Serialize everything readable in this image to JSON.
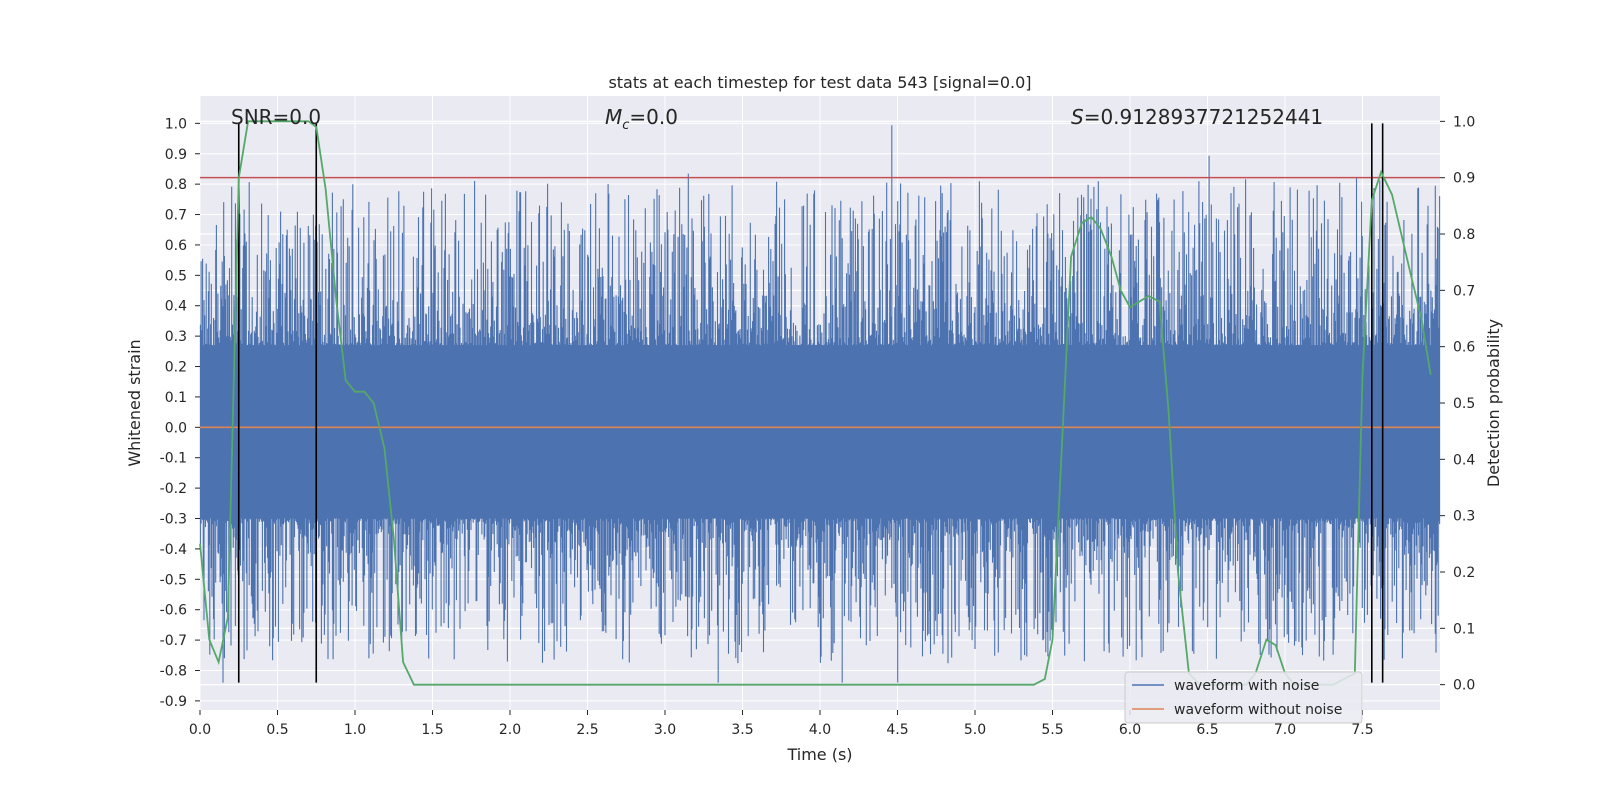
{
  "chart_data": {
    "type": "line",
    "title": "stats at each timestep for test data 543 [signal=0.0]",
    "xlabel": "Time (s)",
    "ylabel": "Whitened strain",
    "ylabel_right": "Detection probability",
    "xlim": [
      0.0,
      8.0
    ],
    "ylim": [
      -0.93,
      1.09
    ],
    "ylim_right": [
      -0.045,
      1.045
    ],
    "xticks": [
      "0.0",
      "0.5",
      "1.0",
      "1.5",
      "2.0",
      "2.5",
      "3.0",
      "3.5",
      "4.0",
      "4.5",
      "5.0",
      "5.5",
      "6.0",
      "6.5",
      "7.0",
      "7.5"
    ],
    "yticks": [
      "1.0",
      "0.9",
      "0.8",
      "0.7",
      "0.6",
      "0.5",
      "0.4",
      "0.3",
      "0.2",
      "0.1",
      "0.0",
      "-0.1",
      "-0.2",
      "-0.3",
      "-0.4",
      "-0.5",
      "-0.6",
      "-0.7",
      "-0.8",
      "-0.9"
    ],
    "yticks_right": [
      "1.0",
      "0.9",
      "0.8",
      "0.7",
      "0.6",
      "0.5",
      "0.4",
      "0.3",
      "0.2",
      "0.1",
      "0.0"
    ],
    "annotations": {
      "snr": "SNR=0.0",
      "mc_symbol": "M",
      "mc_sub": "c",
      "mc_value": "=0.0",
      "s_symbol": "S",
      "s_value": "=0.9128937721252441"
    },
    "threshold_right": 0.9,
    "vlines_x": [
      0.25,
      0.75,
      7.56,
      7.63
    ],
    "vlines_ymin": -0.84,
    "vlines_ymax": 1.0,
    "noise": {
      "seed": 543,
      "count": 1700,
      "baseline_max": 0.27,
      "baseline_min": -0.3,
      "spike_up_max": 1.0,
      "spike_down_min": -0.84
    },
    "series": [
      {
        "name": "waveform with noise",
        "color": "#4c72b0"
      },
      {
        "name": "waveform without noise",
        "color": "#dd8452",
        "x": [
          0.0,
          8.0
        ],
        "y": [
          0.0,
          0.0
        ]
      },
      {
        "name": "detection probability",
        "color": "#55a868",
        "x": [
          0.0,
          0.06,
          0.12,
          0.18,
          0.25,
          0.31,
          0.38,
          0.45,
          0.5,
          0.56,
          0.62,
          0.7,
          0.75,
          0.81,
          0.88,
          0.94,
          1.0,
          1.06,
          1.12,
          1.19,
          1.25,
          1.31,
          1.38,
          1.45,
          1.5,
          2.0,
          3.0,
          4.0,
          5.0,
          5.38,
          5.45,
          5.5,
          5.56,
          5.62,
          5.69,
          5.75,
          5.81,
          5.88,
          5.94,
          6.0,
          6.06,
          6.12,
          6.19,
          6.25,
          6.31,
          6.38,
          6.45,
          6.5,
          6.56,
          6.62,
          6.69,
          6.75,
          6.81,
          6.88,
          6.94,
          7.0,
          7.06,
          7.12,
          7.19,
          7.25,
          7.31,
          7.38,
          7.45,
          7.5,
          7.56,
          7.62,
          7.69,
          7.75,
          7.81,
          7.88,
          7.94
        ],
        "y": [
          0.25,
          0.08,
          0.04,
          0.12,
          0.9,
          1.0,
          1.0,
          1.0,
          1.0,
          1.0,
          1.0,
          1.0,
          0.99,
          0.88,
          0.68,
          0.54,
          0.52,
          0.52,
          0.5,
          0.42,
          0.26,
          0.04,
          0.0,
          0.0,
          0.0,
          0.0,
          0.0,
          0.0,
          0.0,
          0.0,
          0.01,
          0.08,
          0.42,
          0.76,
          0.82,
          0.83,
          0.81,
          0.76,
          0.7,
          0.67,
          0.68,
          0.69,
          0.68,
          0.48,
          0.2,
          0.02,
          0.0,
          0.0,
          0.0,
          0.0,
          0.0,
          0.0,
          0.02,
          0.08,
          0.07,
          0.02,
          0.0,
          0.0,
          0.0,
          0.0,
          0.0,
          0.01,
          0.02,
          0.55,
          0.86,
          0.91,
          0.87,
          0.8,
          0.73,
          0.65,
          0.55
        ]
      }
    ],
    "legend": {
      "position": "bottom-right",
      "entries": [
        {
          "label": "waveform with noise",
          "color": "#4c72b0"
        },
        {
          "label": "waveform without noise",
          "color": "#dd8452"
        }
      ]
    },
    "colors": {
      "background": "#eaeaf2",
      "grid": "#ffffff",
      "threshold": "#c44e52",
      "vline": "#000000"
    }
  }
}
